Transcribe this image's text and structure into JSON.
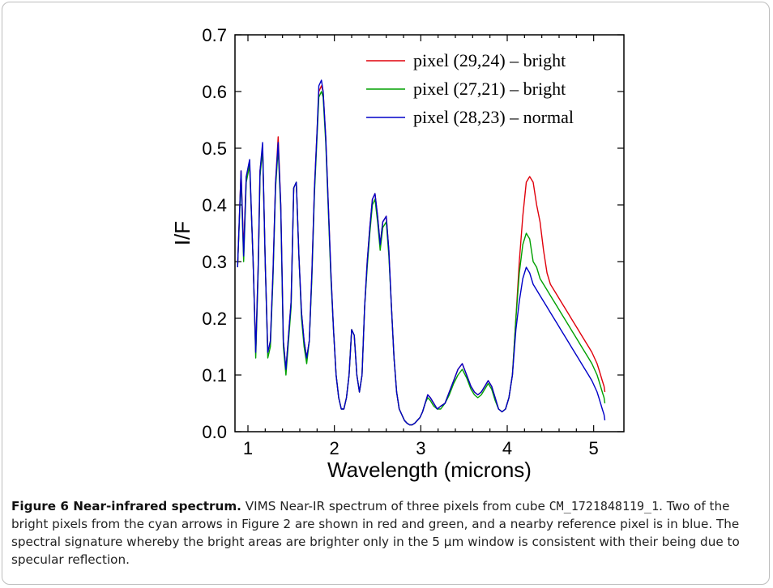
{
  "chart_data": {
    "type": "line",
    "xlabel": "Wavelength (microns)",
    "ylabel": "I/F",
    "xlim": [
      0.85,
      5.35
    ],
    "ylim": [
      0.0,
      0.7
    ],
    "xticks": [
      1,
      2,
      3,
      4,
      5
    ],
    "yticks": [
      0.0,
      0.1,
      0.2,
      0.3,
      0.4,
      0.5,
      0.6,
      0.7
    ],
    "ytick_labels": [
      "0.0",
      "0.1",
      "0.2",
      "0.3",
      "0.4",
      "0.5",
      "0.6",
      "0.7"
    ],
    "legend_position": "top-right",
    "grid": false,
    "x": [
      0.88,
      0.92,
      0.95,
      0.98,
      1.02,
      1.06,
      1.09,
      1.12,
      1.14,
      1.17,
      1.2,
      1.23,
      1.26,
      1.29,
      1.32,
      1.35,
      1.38,
      1.41,
      1.44,
      1.47,
      1.5,
      1.53,
      1.56,
      1.59,
      1.62,
      1.65,
      1.68,
      1.71,
      1.74,
      1.77,
      1.8,
      1.82,
      1.85,
      1.87,
      1.9,
      1.93,
      1.96,
      1.99,
      2.02,
      2.05,
      2.08,
      2.11,
      2.14,
      2.17,
      2.2,
      2.23,
      2.26,
      2.29,
      2.32,
      2.35,
      2.38,
      2.41,
      2.44,
      2.47,
      2.5,
      2.53,
      2.56,
      2.6,
      2.63,
      2.66,
      2.69,
      2.72,
      2.75,
      2.78,
      2.81,
      2.84,
      2.87,
      2.9,
      2.93,
      2.96,
      2.99,
      3.02,
      3.05,
      3.08,
      3.11,
      3.15,
      3.19,
      3.23,
      3.28,
      3.33,
      3.38,
      3.43,
      3.48,
      3.53,
      3.58,
      3.62,
      3.66,
      3.7,
      3.74,
      3.78,
      3.82,
      3.86,
      3.9,
      3.94,
      3.98,
      4.02,
      4.06,
      4.1,
      4.14,
      4.18,
      4.22,
      4.26,
      4.3,
      4.34,
      4.38,
      4.42,
      4.46,
      4.5,
      4.54,
      4.58,
      4.62,
      4.66,
      4.7,
      4.74,
      4.78,
      4.82,
      4.86,
      4.9,
      4.94,
      4.98,
      5.01,
      5.04,
      5.06,
      5.08,
      5.1,
      5.12,
      5.13
    ],
    "series": [
      {
        "name": "pixel (29,24) – bright",
        "color": "#e0000b",
        "values": [
          0.29,
          0.46,
          0.32,
          0.45,
          0.47,
          0.3,
          0.14,
          0.3,
          0.46,
          0.5,
          0.3,
          0.14,
          0.16,
          0.28,
          0.44,
          0.52,
          0.4,
          0.16,
          0.11,
          0.17,
          0.23,
          0.43,
          0.44,
          0.31,
          0.21,
          0.16,
          0.13,
          0.16,
          0.28,
          0.43,
          0.53,
          0.6,
          0.61,
          0.6,
          0.52,
          0.4,
          0.28,
          0.18,
          0.1,
          0.06,
          0.04,
          0.04,
          0.06,
          0.1,
          0.18,
          0.17,
          0.1,
          0.07,
          0.1,
          0.22,
          0.3,
          0.36,
          0.41,
          0.42,
          0.38,
          0.33,
          0.37,
          0.38,
          0.32,
          0.22,
          0.13,
          0.07,
          0.04,
          0.03,
          0.02,
          0.015,
          0.012,
          0.012,
          0.015,
          0.02,
          0.025,
          0.035,
          0.05,
          0.065,
          0.06,
          0.05,
          0.04,
          0.045,
          0.05,
          0.07,
          0.09,
          0.11,
          0.12,
          0.1,
          0.08,
          0.07,
          0.065,
          0.07,
          0.08,
          0.09,
          0.08,
          0.06,
          0.04,
          0.035,
          0.04,
          0.06,
          0.1,
          0.2,
          0.3,
          0.38,
          0.44,
          0.45,
          0.44,
          0.4,
          0.37,
          0.32,
          0.28,
          0.26,
          0.25,
          0.24,
          0.23,
          0.22,
          0.21,
          0.2,
          0.19,
          0.18,
          0.17,
          0.16,
          0.15,
          0.14,
          0.13,
          0.12,
          0.11,
          0.1,
          0.09,
          0.08,
          0.07
        ]
      },
      {
        "name": "pixel (27,21) – bright",
        "color": "#00a000",
        "values": [
          0.29,
          0.45,
          0.3,
          0.44,
          0.47,
          0.3,
          0.13,
          0.29,
          0.45,
          0.5,
          0.3,
          0.13,
          0.15,
          0.27,
          0.43,
          0.5,
          0.39,
          0.15,
          0.1,
          0.16,
          0.22,
          0.43,
          0.44,
          0.31,
          0.2,
          0.15,
          0.12,
          0.16,
          0.27,
          0.42,
          0.52,
          0.59,
          0.6,
          0.59,
          0.51,
          0.39,
          0.27,
          0.18,
          0.1,
          0.06,
          0.04,
          0.04,
          0.06,
          0.1,
          0.18,
          0.17,
          0.1,
          0.07,
          0.1,
          0.22,
          0.29,
          0.35,
          0.4,
          0.41,
          0.37,
          0.32,
          0.36,
          0.37,
          0.31,
          0.22,
          0.13,
          0.07,
          0.04,
          0.03,
          0.02,
          0.015,
          0.012,
          0.012,
          0.015,
          0.02,
          0.025,
          0.035,
          0.05,
          0.06,
          0.055,
          0.045,
          0.04,
          0.04,
          0.05,
          0.065,
          0.085,
          0.1,
          0.11,
          0.095,
          0.075,
          0.065,
          0.06,
          0.065,
          0.075,
          0.085,
          0.075,
          0.055,
          0.04,
          0.035,
          0.04,
          0.06,
          0.1,
          0.2,
          0.28,
          0.33,
          0.35,
          0.34,
          0.3,
          0.29,
          0.27,
          0.26,
          0.25,
          0.24,
          0.23,
          0.22,
          0.21,
          0.2,
          0.19,
          0.18,
          0.17,
          0.16,
          0.15,
          0.14,
          0.13,
          0.12,
          0.11,
          0.1,
          0.09,
          0.08,
          0.07,
          0.06,
          0.05
        ]
      },
      {
        "name": "pixel (28,23) – normal",
        "color": "#0000c8",
        "values": [
          0.29,
          0.46,
          0.31,
          0.45,
          0.48,
          0.3,
          0.14,
          0.3,
          0.46,
          0.51,
          0.3,
          0.14,
          0.16,
          0.28,
          0.44,
          0.51,
          0.4,
          0.16,
          0.11,
          0.17,
          0.23,
          0.43,
          0.44,
          0.31,
          0.21,
          0.16,
          0.13,
          0.16,
          0.28,
          0.43,
          0.53,
          0.61,
          0.62,
          0.6,
          0.52,
          0.4,
          0.28,
          0.18,
          0.1,
          0.06,
          0.04,
          0.04,
          0.06,
          0.1,
          0.18,
          0.17,
          0.1,
          0.07,
          0.1,
          0.22,
          0.3,
          0.36,
          0.41,
          0.42,
          0.38,
          0.33,
          0.37,
          0.38,
          0.32,
          0.22,
          0.13,
          0.07,
          0.04,
          0.03,
          0.02,
          0.015,
          0.012,
          0.012,
          0.015,
          0.02,
          0.025,
          0.035,
          0.05,
          0.065,
          0.06,
          0.05,
          0.04,
          0.045,
          0.05,
          0.07,
          0.09,
          0.11,
          0.12,
          0.1,
          0.08,
          0.07,
          0.065,
          0.07,
          0.08,
          0.09,
          0.08,
          0.06,
          0.04,
          0.035,
          0.04,
          0.06,
          0.1,
          0.18,
          0.23,
          0.27,
          0.29,
          0.28,
          0.26,
          0.25,
          0.24,
          0.23,
          0.22,
          0.21,
          0.2,
          0.19,
          0.18,
          0.17,
          0.16,
          0.15,
          0.14,
          0.13,
          0.12,
          0.11,
          0.1,
          0.09,
          0.08,
          0.07,
          0.06,
          0.05,
          0.04,
          0.03,
          0.02
        ]
      }
    ]
  },
  "caption": {
    "title": "Figure 6 Near-infrared spectrum.",
    "text_a": " VIMS Near-IR spectrum of three pixels from cube ",
    "cube_id": "CM_1721848119_1",
    "text_b": ". Two of the bright pixels from the cyan arrows in Figure 2 are shown in red and green, and a nearby reference pixel is in blue. The spectral signature whereby the bright areas are brighter only in the 5 µm window is consistent with their being due to specular reflection."
  }
}
